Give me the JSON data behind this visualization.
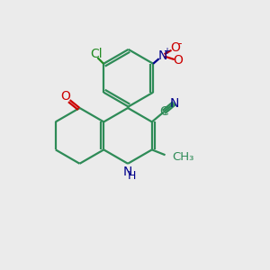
{
  "background_color": "#ebebeb",
  "bond_color": "#2e8b57",
  "bond_lw": 1.6,
  "atom_colors": {
    "Cl": "#228B22",
    "N": "#00008B",
    "O": "#cc0000",
    "C": "#2e8b57"
  },
  "fontsize": 10
}
